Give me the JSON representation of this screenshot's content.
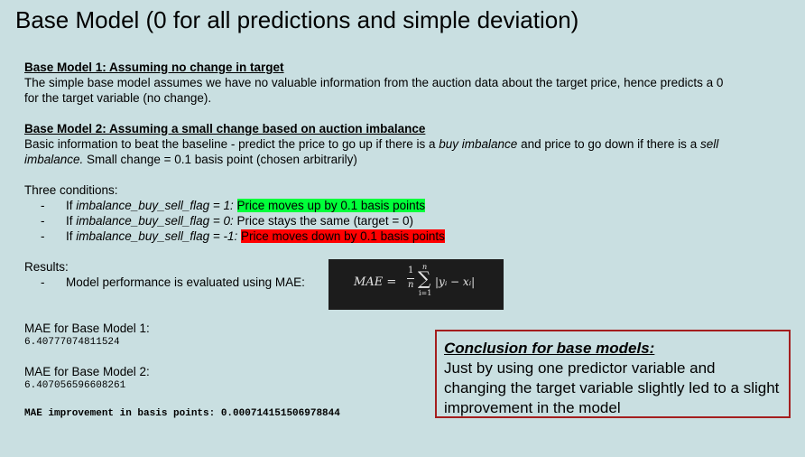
{
  "title": "Base Model (0 for all predictions and simple deviation)",
  "model1": {
    "heading": "Base Model 1: Assuming no change in target",
    "line1": "The simple base model assumes we have no valuable information from the auction data about the target price, hence predicts a 0",
    "line2": "for the target variable (no change)."
  },
  "model2": {
    "heading": "Base Model 2: Assuming a small change based on auction imbalance",
    "line1_a": "Basic information to beat the baseline - predict the price to go up if there is a ",
    "line1_b": "buy imbalance",
    "line1_c": " and price to go down if there is a ",
    "line1_d": "sell",
    "line2_a": "imbalance.",
    "line2_b": " Small change = 0.1 basis point (chosen arbitrarily)"
  },
  "conditions": {
    "label": "Three conditions:",
    "items": [
      {
        "prefix": "If ",
        "var": "imbalance_buy_sell_flag = 1:",
        "rest": " ",
        "highlight": "Price moves up by 0.1 basis points"
      },
      {
        "prefix": "If ",
        "var": "imbalance_buy_sell_flag = 0:",
        "rest": " Price stays the same (target = 0)",
        "highlight": ""
      },
      {
        "prefix": "If ",
        "var": "imbalance_buy_sell_flag = -1:",
        "rest": " ",
        "highlight": "Price moves down by 0.1 basis points"
      }
    ]
  },
  "results": {
    "label": "Results:",
    "item": "Model performance is evaluated using MAE:"
  },
  "formula": {
    "lhs": "MAE =",
    "num": "1",
    "den": "n",
    "sum_top": "n",
    "sigma": "∑",
    "sum_bot": "i=1",
    "term": "|yᵢ − xᵢ|"
  },
  "mae": {
    "label1": "MAE for Base Model 1:",
    "value1": "6.40777074811524",
    "label2": "MAE for Base Model 2:",
    "value2": "6.407056596608261",
    "improvement": "MAE improvement in basis points: 0.000714151506978844"
  },
  "conclusion": {
    "title": "Conclusion for base models:",
    "body": "Just by using one predictor variable and changing the target variable slightly led to a slight improvement in the model"
  },
  "colors": {
    "background": "#c9dfe1",
    "green_highlight": "#00ff3a",
    "red_highlight": "#ff0000",
    "conclusion_border": "#a41e1e",
    "formula_bg": "#1c1c1c"
  }
}
